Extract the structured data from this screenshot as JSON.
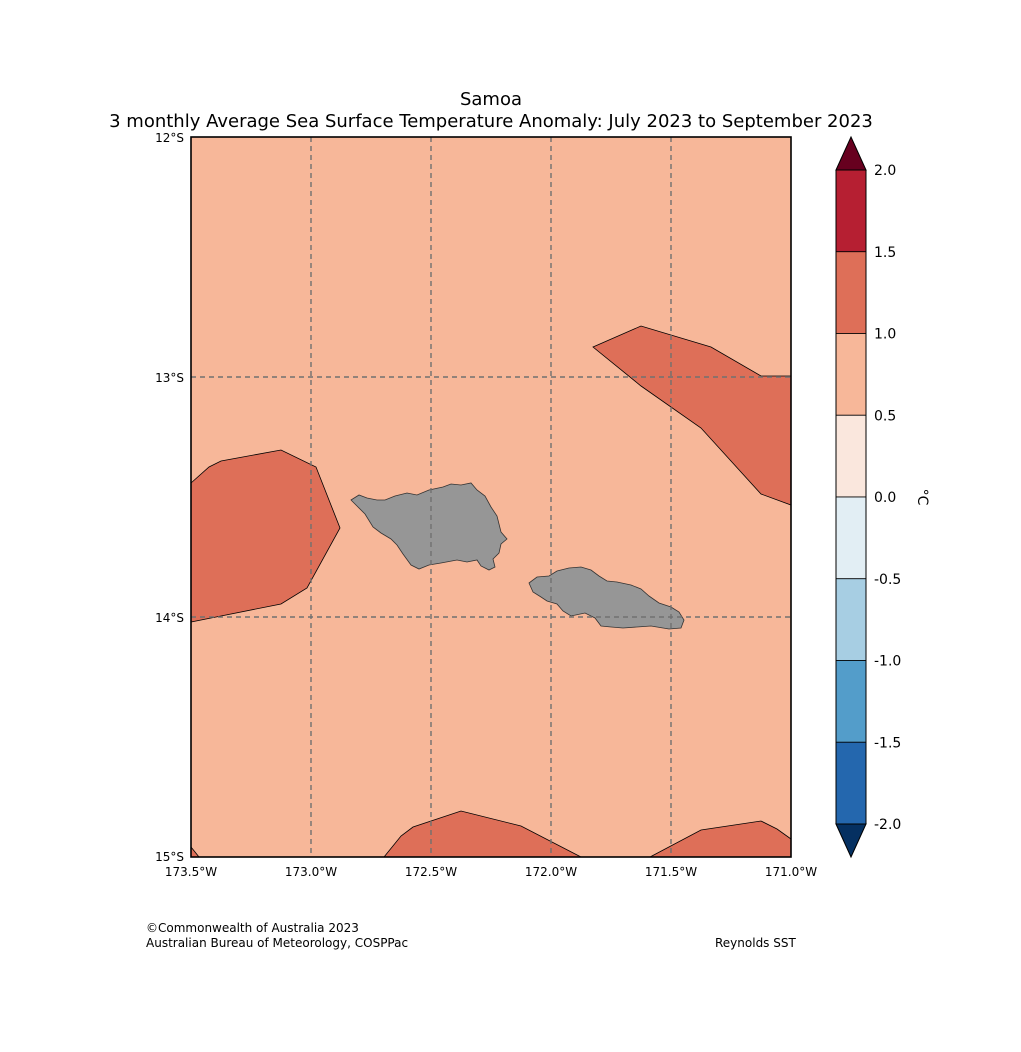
{
  "title": {
    "line1": "Samoa",
    "line2": "3 monthly Average Sea Surface Temperature Anomaly: July 2023 to September 2023"
  },
  "map": {
    "lat_labels": [
      "12°S",
      "13°S",
      "14°S",
      "15°S"
    ],
    "lon_labels": [
      "173.5°W",
      "173.0°W",
      "172.5°W",
      "172.0°W",
      "171.5°W",
      "171.0°W"
    ],
    "ocean_color": "#f7b799",
    "warm_color": "#de6f58",
    "land_color": "#969696",
    "grid_color": "#707070"
  },
  "colorbar": {
    "unit": "°C",
    "ticks": [
      "2.0",
      "1.5",
      "1.0",
      "0.5",
      "0.0",
      "-0.5",
      "-1.0",
      "-1.5",
      "-2.0"
    ],
    "bins": [
      {
        "range": "above 2.0",
        "color": "#67001f"
      },
      {
        "range": "1.5 to 2.0",
        "color": "#b61f32"
      },
      {
        "range": "1.0 to 1.5",
        "color": "#de6f58"
      },
      {
        "range": "0.5 to 1.0",
        "color": "#f7b799"
      },
      {
        "range": "0.0 to 0.5",
        "color": "#fae7dd"
      },
      {
        "range": "-0.5 to 0.0",
        "color": "#e2eef4"
      },
      {
        "range": "-1.0 to -0.5",
        "color": "#a7cee3"
      },
      {
        "range": "-1.5 to -1.0",
        "color": "#539dca"
      },
      {
        "range": "-2.0 to -1.5",
        "color": "#2467ae"
      },
      {
        "range": "below -2.0",
        "color": "#053061"
      }
    ]
  },
  "credits": {
    "copyright": "©Commonwealth of Australia 2023",
    "agency": "Australian Bureau of Meteorology, COSPPac",
    "source": "Reynolds SST"
  }
}
